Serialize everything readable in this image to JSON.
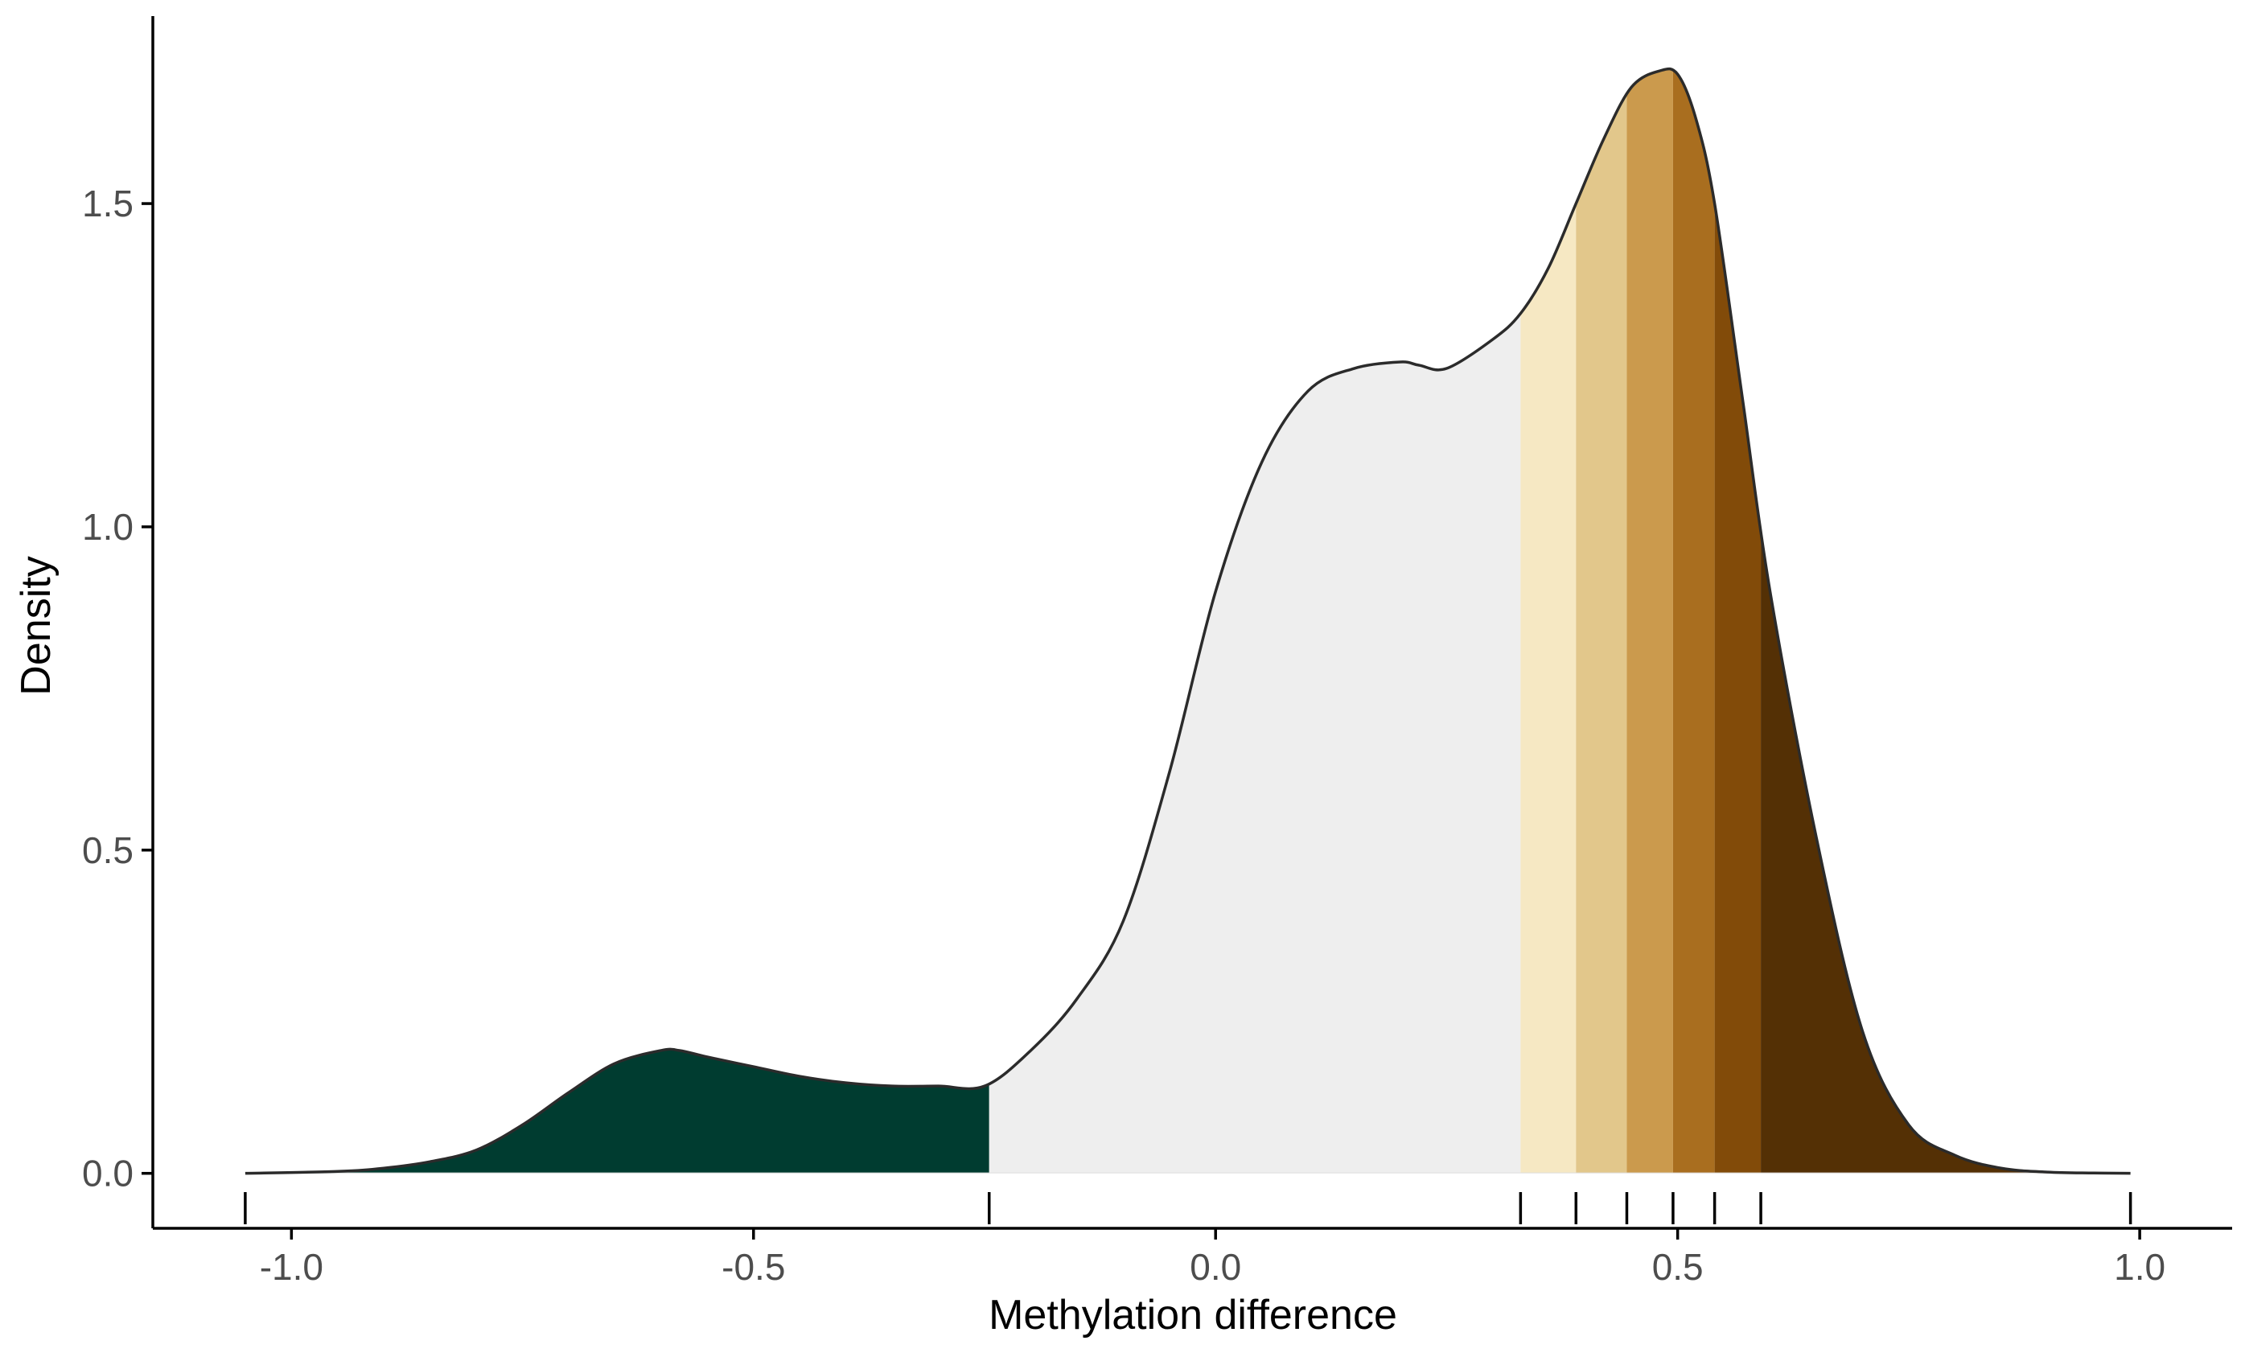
{
  "chart_data": {
    "type": "area",
    "title": "",
    "xlabel": "Methylation difference",
    "ylabel": "Density",
    "xlim": [
      -1.15,
      1.1
    ],
    "ylim": [
      -0.085,
      1.79
    ],
    "x_ticks": [
      -1.0,
      -0.5,
      0.0,
      0.5,
      1.0
    ],
    "x_tick_labels": [
      "-1.0",
      "-0.5",
      "0.0",
      "0.5",
      "1.0"
    ],
    "y_ticks": [
      0.0,
      0.5,
      1.0,
      1.5
    ],
    "y_tick_labels": [
      "0.0",
      "0.5",
      "1.0",
      "1.5"
    ],
    "grid": false,
    "legend": "none",
    "density_curve": {
      "x": [
        -1.05,
        -0.95,
        -0.9,
        -0.85,
        -0.8,
        -0.75,
        -0.7,
        -0.65,
        -0.6,
        -0.58,
        -0.55,
        -0.5,
        -0.45,
        -0.4,
        -0.35,
        -0.3,
        -0.25,
        -0.2,
        -0.15,
        -0.1,
        -0.05,
        0.0,
        0.05,
        0.1,
        0.15,
        0.2,
        0.22,
        0.25,
        0.3,
        0.33,
        0.36,
        0.39,
        0.42,
        0.45,
        0.48,
        0.5,
        0.52,
        0.54,
        0.57,
        0.6,
        0.65,
        0.7,
        0.75,
        0.8,
        0.85,
        0.9,
        0.95,
        0.99
      ],
      "y": [
        0.0,
        0.003,
        0.008,
        0.018,
        0.036,
        0.075,
        0.125,
        0.17,
        0.19,
        0.19,
        0.18,
        0.165,
        0.15,
        0.14,
        0.135,
        0.135,
        0.135,
        0.19,
        0.27,
        0.39,
        0.62,
        0.9,
        1.1,
        1.21,
        1.245,
        1.255,
        1.25,
        1.245,
        1.29,
        1.33,
        1.4,
        1.5,
        1.6,
        1.68,
        1.705,
        1.7,
        1.63,
        1.5,
        1.2,
        0.9,
        0.52,
        0.22,
        0.075,
        0.028,
        0.008,
        0.002,
        0.0005,
        0.0
      ]
    },
    "bands": [
      {
        "from": -1.05,
        "to": -0.245,
        "color": "#003c30"
      },
      {
        "from": -0.245,
        "to": 0.33,
        "color": "#eeeeee"
      },
      {
        "from": 0.33,
        "to": 0.39,
        "color": "#f6e8c3"
      },
      {
        "from": 0.39,
        "to": 0.445,
        "color": "#e2c78b"
      },
      {
        "from": 0.445,
        "to": 0.495,
        "color": "#cb9a4d"
      },
      {
        "from": 0.495,
        "to": 0.54,
        "color": "#a96e1f"
      },
      {
        "from": 0.54,
        "to": 0.59,
        "color": "#824b09"
      },
      {
        "from": 0.59,
        "to": 0.99,
        "color": "#543005"
      }
    ],
    "rug_marks": [
      -1.05,
      -0.245,
      0.33,
      0.39,
      0.445,
      0.495,
      0.54,
      0.59,
      0.99
    ]
  }
}
